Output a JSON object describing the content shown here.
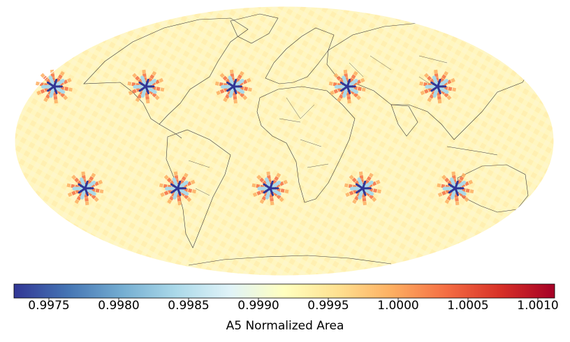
{
  "map": {
    "projection": "Mollweide",
    "base_color": "#fff9c4",
    "land_outline_color": "#333333",
    "hotspot_centers_lon_lat": [
      [
        -168,
        30
      ],
      [
        -101,
        30
      ],
      [
        -37,
        30
      ],
      [
        46,
        30
      ],
      [
        112,
        30
      ],
      [
        -142,
        -26
      ],
      [
        -76,
        -26
      ],
      [
        -10,
        -26
      ],
      [
        56,
        -26
      ],
      [
        122,
        -26
      ]
    ],
    "pattern": "A5 pentagonal cell grid; areas near unity with distortion stars at dodecahedron vertices"
  },
  "colorbar": {
    "colormap": "RdYlBu_r",
    "stops": [
      "#313695",
      "#4575b4",
      "#74add1",
      "#abd9e9",
      "#e0f3f8",
      "#ffffbf",
      "#fee090",
      "#fdae61",
      "#f46d43",
      "#d73027",
      "#a50026"
    ],
    "min": 0.99725,
    "max": 1.00112,
    "title": "A5 Normalized Area",
    "ticks": [
      {
        "value": 0.9975,
        "label": "0.9975"
      },
      {
        "value": 0.998,
        "label": "0.9980"
      },
      {
        "value": 0.9985,
        "label": "0.9985"
      },
      {
        "value": 0.999,
        "label": "0.9990"
      },
      {
        "value": 0.9995,
        "label": "0.9995"
      },
      {
        "value": 1.0,
        "label": "1.0000"
      },
      {
        "value": 1.0005,
        "label": "1.0005"
      },
      {
        "value": 1.001,
        "label": "1.0010"
      }
    ]
  }
}
